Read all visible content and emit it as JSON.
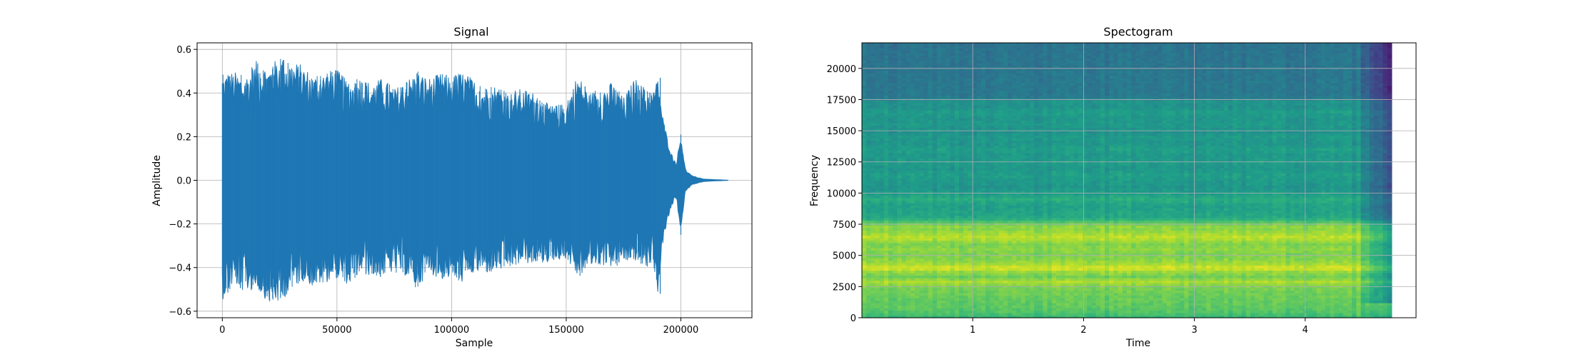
{
  "chart_data": [
    {
      "type": "line",
      "title": "Signal",
      "xlabel": "Sample",
      "ylabel": "Amplitude",
      "xlim": [
        -11000,
        231000
      ],
      "ylim": [
        -0.63,
        0.63
      ],
      "xticks": [
        0,
        50000,
        100000,
        150000,
        200000
      ],
      "xtick_labels": [
        "0",
        "50000",
        "100000",
        "150000",
        "200000"
      ],
      "yticks": [
        -0.6,
        -0.4,
        -0.2,
        0.0,
        0.2,
        0.4,
        0.6
      ],
      "ytick_labels": [
        "−0.6",
        "−0.4",
        "−0.2",
        "0.0",
        "0.2",
        "0.4",
        "0.6"
      ],
      "grid": true,
      "color": "#1f77b4",
      "total_samples": 220500,
      "series": [
        {
          "envelope": {
            "x": [
              0,
              5000,
              10000,
              15000,
              20000,
              25000,
              30000,
              35000,
              40000,
              45000,
              50000,
              55000,
              60000,
              65000,
              70000,
              75000,
              80000,
              85000,
              90000,
              95000,
              100000,
              105000,
              110000,
              115000,
              120000,
              125000,
              130000,
              135000,
              140000,
              145000,
              150000,
              155000,
              160000,
              165000,
              170000,
              175000,
              180000,
              185000,
              188000,
              190000,
              192000,
              194000,
              196000,
              198000,
              200000,
              202000,
              205000,
              210000,
              215000,
              220000
            ],
            "upper": [
              0.49,
              0.5,
              0.48,
              0.55,
              0.52,
              0.57,
              0.55,
              0.53,
              0.48,
              0.5,
              0.51,
              0.45,
              0.47,
              0.45,
              0.47,
              0.42,
              0.46,
              0.5,
              0.47,
              0.49,
              0.48,
              0.5,
              0.46,
              0.43,
              0.44,
              0.4,
              0.42,
              0.41,
              0.36,
              0.34,
              0.36,
              0.49,
              0.4,
              0.42,
              0.45,
              0.38,
              0.47,
              0.42,
              0.41,
              0.47,
              0.3,
              0.2,
              0.12,
              0.08,
              0.21,
              0.05,
              0.02,
              0.006,
              0.003,
              0.001
            ],
            "lower": [
              -0.55,
              -0.48,
              -0.52,
              -0.5,
              -0.56,
              -0.57,
              -0.5,
              -0.46,
              -0.49,
              -0.47,
              -0.45,
              -0.48,
              -0.43,
              -0.44,
              -0.45,
              -0.42,
              -0.44,
              -0.5,
              -0.42,
              -0.46,
              -0.45,
              -0.47,
              -0.43,
              -0.43,
              -0.42,
              -0.4,
              -0.39,
              -0.38,
              -0.38,
              -0.37,
              -0.36,
              -0.45,
              -0.4,
              -0.39,
              -0.4,
              -0.38,
              -0.37,
              -0.4,
              -0.38,
              -0.52,
              -0.3,
              -0.2,
              -0.12,
              -0.08,
              -0.25,
              -0.05,
              -0.02,
              -0.006,
              -0.003,
              -0.001
            ]
          }
        }
      ]
    },
    {
      "type": "heatmap",
      "title": "Spectogram",
      "xlabel": "Time",
      "ylabel": "Frequency",
      "xlim": [
        0,
        5.0
      ],
      "ylim": [
        0,
        22050
      ],
      "data_extent_x": [
        0,
        4.78
      ],
      "xticks": [
        1,
        2,
        3,
        4
      ],
      "xtick_labels": [
        "1",
        "2",
        "3",
        "4"
      ],
      "yticks": [
        0,
        2500,
        5000,
        7500,
        10000,
        12500,
        15000,
        17500,
        20000
      ],
      "ytick_labels": [
        "0",
        "2500",
        "5000",
        "7500",
        "10000",
        "12500",
        "15000",
        "17500",
        "20000"
      ],
      "grid": true,
      "colormap": "viridis",
      "band_profile": {
        "freq": [
          0,
          400,
          1000,
          1500,
          2000,
          2500,
          2900,
          3300,
          3700,
          4000,
          4300,
          4700,
          5100,
          5500,
          5900,
          6200,
          6500,
          6800,
          7100,
          7400,
          7700,
          8000,
          8500,
          9000,
          9500,
          10000,
          10500,
          11000,
          11500,
          12000,
          12500,
          13000,
          13500,
          14000,
          14500,
          15000,
          15500,
          16000,
          16500,
          17000,
          17400,
          17600,
          18000,
          19000,
          20000,
          21000,
          22050
        ],
        "level": [
          0.66,
          0.72,
          0.75,
          0.76,
          0.78,
          0.8,
          0.88,
          0.78,
          0.84,
          0.95,
          0.87,
          0.82,
          0.8,
          0.83,
          0.8,
          0.86,
          0.9,
          0.86,
          0.82,
          0.83,
          0.72,
          0.6,
          0.58,
          0.56,
          0.62,
          0.55,
          0.52,
          0.54,
          0.56,
          0.52,
          0.55,
          0.53,
          0.56,
          0.52,
          0.54,
          0.5,
          0.54,
          0.52,
          0.55,
          0.5,
          0.52,
          0.42,
          0.4,
          0.4,
          0.39,
          0.39,
          0.38
        ]
      }
    }
  ]
}
